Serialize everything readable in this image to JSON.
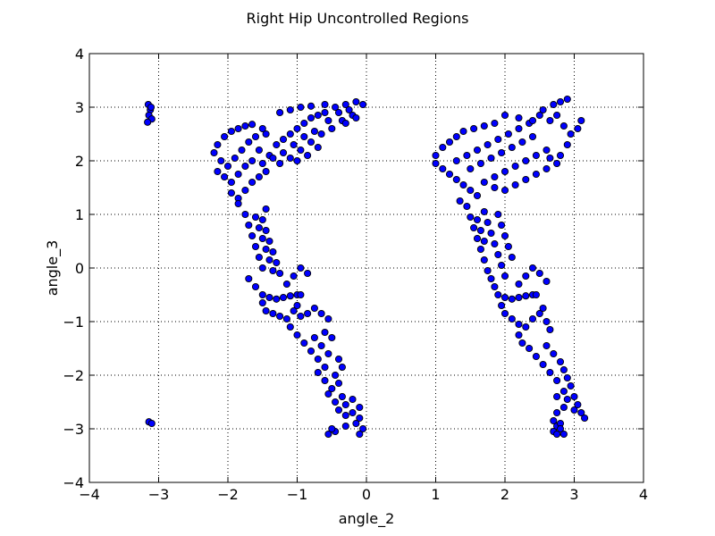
{
  "chart_data": {
    "type": "scatter",
    "title": "Right Hip Uncontrolled Regions",
    "xlabel": "angle_2",
    "ylabel": "angle_3",
    "xlim": [
      -4,
      4
    ],
    "ylim": [
      -4,
      4
    ],
    "xticks": [
      -4,
      -3,
      -2,
      -1,
      0,
      1,
      2,
      3,
      4
    ],
    "yticks": [
      -4,
      -3,
      -2,
      -1,
      0,
      1,
      2,
      3,
      4
    ],
    "xtick_labels": [
      "−4",
      "−3",
      "−2",
      "−1",
      "0",
      "1",
      "2",
      "3",
      "4"
    ],
    "ytick_labels": [
      "−4",
      "−3",
      "−2",
      "−1",
      "0",
      "1",
      "2",
      "3",
      "4"
    ],
    "grid": true,
    "marker_color": "#0000ff",
    "marker_edge_color": "#000000",
    "series": [
      {
        "points": [
          [
            -3.15,
            3.05
          ],
          [
            -3.12,
            2.95
          ],
          [
            -3.14,
            2.85
          ],
          [
            -3.1,
            2.78
          ],
          [
            -3.16,
            2.72
          ],
          [
            -3.11,
            3.0
          ],
          [
            -3.14,
            -2.87
          ],
          [
            -3.1,
            -2.9
          ],
          [
            -2.2,
            2.15
          ],
          [
            -2.15,
            2.3
          ],
          [
            -2.05,
            2.45
          ],
          [
            -1.95,
            2.55
          ],
          [
            -1.85,
            2.6
          ],
          [
            -1.75,
            2.65
          ],
          [
            -1.65,
            2.68
          ],
          [
            -2.1,
            2.0
          ],
          [
            -2.0,
            1.9
          ],
          [
            -1.9,
            2.05
          ],
          [
            -1.8,
            2.2
          ],
          [
            -1.7,
            2.35
          ],
          [
            -1.6,
            2.45
          ],
          [
            -1.55,
            2.2
          ],
          [
            -2.15,
            1.8
          ],
          [
            -2.05,
            1.7
          ],
          [
            -1.95,
            1.6
          ],
          [
            -1.85,
            1.75
          ],
          [
            -1.75,
            1.9
          ],
          [
            -1.65,
            2.0
          ],
          [
            -1.5,
            1.95
          ],
          [
            -1.95,
            1.4
          ],
          [
            -1.85,
            1.3
          ],
          [
            -1.75,
            1.45
          ],
          [
            -1.65,
            1.6
          ],
          [
            -1.55,
            1.7
          ],
          [
            -1.45,
            1.8
          ],
          [
            -1.4,
            2.1
          ],
          [
            -1.3,
            2.3
          ],
          [
            -1.2,
            2.4
          ],
          [
            -1.1,
            2.5
          ],
          [
            -1.0,
            2.6
          ],
          [
            -0.9,
            2.7
          ],
          [
            -0.8,
            2.8
          ],
          [
            -0.7,
            2.85
          ],
          [
            -0.6,
            2.9
          ],
          [
            -1.25,
            2.9
          ],
          [
            -1.1,
            2.95
          ],
          [
            -0.95,
            3.0
          ],
          [
            -0.8,
            3.02
          ],
          [
            -0.6,
            3.05
          ],
          [
            -0.45,
            3.0
          ],
          [
            -0.3,
            3.05
          ],
          [
            -0.15,
            3.1
          ],
          [
            -0.05,
            3.05
          ],
          [
            -0.2,
            2.85
          ],
          [
            -0.35,
            2.75
          ],
          [
            -0.5,
            2.6
          ],
          [
            -0.65,
            2.5
          ],
          [
            -0.8,
            2.35
          ],
          [
            -0.95,
            2.2
          ],
          [
            -1.1,
            2.05
          ],
          [
            -1.25,
            1.95
          ],
          [
            -1.35,
            2.05
          ],
          [
            -1.45,
            2.5
          ],
          [
            -1.5,
            2.6
          ],
          [
            -1.2,
            2.15
          ],
          [
            -1.05,
            2.3
          ],
          [
            -0.9,
            2.45
          ],
          [
            -0.75,
            2.55
          ],
          [
            -0.55,
            2.75
          ],
          [
            -0.4,
            2.9
          ],
          [
            -0.25,
            2.95
          ],
          [
            -1.0,
            2.0
          ],
          [
            -0.85,
            2.1
          ],
          [
            -0.7,
            2.25
          ],
          [
            -0.3,
            2.7
          ],
          [
            -0.15,
            2.8
          ],
          [
            -1.85,
            1.2
          ],
          [
            -1.75,
            1.0
          ],
          [
            -1.7,
            0.8
          ],
          [
            -1.65,
            0.6
          ],
          [
            -1.6,
            0.4
          ],
          [
            -1.55,
            0.2
          ],
          [
            -1.5,
            0.0
          ],
          [
            -1.45,
            1.1
          ],
          [
            -1.5,
            0.9
          ],
          [
            -1.45,
            0.7
          ],
          [
            -1.4,
            0.5
          ],
          [
            -1.35,
            0.3
          ],
          [
            -1.3,
            0.1
          ],
          [
            -1.25,
            -0.1
          ],
          [
            -1.6,
            0.95
          ],
          [
            -1.55,
            0.75
          ],
          [
            -1.5,
            0.55
          ],
          [
            -1.45,
            0.35
          ],
          [
            -1.4,
            0.15
          ],
          [
            -1.35,
            -0.05
          ],
          [
            -1.7,
            -0.2
          ],
          [
            -1.6,
            -0.35
          ],
          [
            -1.5,
            -0.5
          ],
          [
            -1.4,
            -0.55
          ],
          [
            -1.3,
            -0.58
          ],
          [
            -1.2,
            -0.55
          ],
          [
            -1.1,
            -0.52
          ],
          [
            -1.0,
            -0.5
          ],
          [
            -0.95,
            -0.5
          ],
          [
            -1.15,
            -0.3
          ],
          [
            -1.05,
            -0.15
          ],
          [
            -0.95,
            0.0
          ],
          [
            -0.85,
            -0.1
          ],
          [
            -1.5,
            -0.65
          ],
          [
            -1.45,
            -0.8
          ],
          [
            -1.35,
            -0.85
          ],
          [
            -1.25,
            -0.9
          ],
          [
            -1.15,
            -0.95
          ],
          [
            -1.05,
            -0.8
          ],
          [
            -1.0,
            -0.7
          ],
          [
            -0.95,
            -0.9
          ],
          [
            -0.85,
            -0.85
          ],
          [
            -0.75,
            -0.75
          ],
          [
            -0.65,
            -0.85
          ],
          [
            -0.55,
            -0.95
          ],
          [
            -1.1,
            -1.1
          ],
          [
            -1.0,
            -1.25
          ],
          [
            -0.9,
            -1.4
          ],
          [
            -0.8,
            -1.55
          ],
          [
            -0.7,
            -1.7
          ],
          [
            -0.75,
            -1.3
          ],
          [
            -0.65,
            -1.45
          ],
          [
            -0.6,
            -1.2
          ],
          [
            -0.5,
            -1.3
          ],
          [
            -0.55,
            -1.6
          ],
          [
            -0.6,
            -1.85
          ],
          [
            -0.7,
            -1.95
          ],
          [
            -0.6,
            -2.1
          ],
          [
            -0.5,
            -2.25
          ],
          [
            -0.45,
            -2.0
          ],
          [
            -0.4,
            -2.15
          ],
          [
            -0.55,
            -2.35
          ],
          [
            -0.45,
            -2.5
          ],
          [
            -0.35,
            -2.4
          ],
          [
            -0.3,
            -2.55
          ],
          [
            -0.4,
            -2.65
          ],
          [
            -0.3,
            -2.75
          ],
          [
            -0.2,
            -2.7
          ],
          [
            -0.1,
            -2.8
          ],
          [
            -0.1,
            -2.6
          ],
          [
            -0.2,
            -2.45
          ],
          [
            -0.15,
            -2.9
          ],
          [
            -0.05,
            -3.0
          ],
          [
            -0.1,
            -3.1
          ],
          [
            -0.45,
            -3.05
          ],
          [
            -0.55,
            -3.1
          ],
          [
            -0.5,
            -3.0
          ],
          [
            -0.3,
            -2.95
          ],
          [
            -0.35,
            -1.85
          ],
          [
            -0.4,
            -1.7
          ],
          [
            1.0,
            2.1
          ],
          [
            1.1,
            2.25
          ],
          [
            1.2,
            2.35
          ],
          [
            1.3,
            2.45
          ],
          [
            1.4,
            2.55
          ],
          [
            1.55,
            2.6
          ],
          [
            1.7,
            2.65
          ],
          [
            1.85,
            2.7
          ],
          [
            1.0,
            1.95
          ],
          [
            1.1,
            1.85
          ],
          [
            1.2,
            1.75
          ],
          [
            1.3,
            1.65
          ],
          [
            1.4,
            1.55
          ],
          [
            1.5,
            1.45
          ],
          [
            1.6,
            1.35
          ],
          [
            1.3,
            2.0
          ],
          [
            1.45,
            2.1
          ],
          [
            1.6,
            2.2
          ],
          [
            1.75,
            2.3
          ],
          [
            1.9,
            2.4
          ],
          [
            2.05,
            2.5
          ],
          [
            2.2,
            2.6
          ],
          [
            2.35,
            2.7
          ],
          [
            1.5,
            1.85
          ],
          [
            1.65,
            1.95
          ],
          [
            1.8,
            2.05
          ],
          [
            1.95,
            2.15
          ],
          [
            2.1,
            2.25
          ],
          [
            2.25,
            2.35
          ],
          [
            2.4,
            2.45
          ],
          [
            1.7,
            1.6
          ],
          [
            1.85,
            1.7
          ],
          [
            2.0,
            1.8
          ],
          [
            2.15,
            1.9
          ],
          [
            2.3,
            2.0
          ],
          [
            2.45,
            2.1
          ],
          [
            2.6,
            2.2
          ],
          [
            2.0,
            2.85
          ],
          [
            2.2,
            2.8
          ],
          [
            2.4,
            2.75
          ],
          [
            2.55,
            2.95
          ],
          [
            2.7,
            3.05
          ],
          [
            2.8,
            3.1
          ],
          [
            2.9,
            3.15
          ],
          [
            2.75,
            2.85
          ],
          [
            2.85,
            2.65
          ],
          [
            2.95,
            2.5
          ],
          [
            3.05,
            2.6
          ],
          [
            3.1,
            2.75
          ],
          [
            2.9,
            2.3
          ],
          [
            2.8,
            2.1
          ],
          [
            2.65,
            2.05
          ],
          [
            2.75,
            1.95
          ],
          [
            2.6,
            1.85
          ],
          [
            2.45,
            1.75
          ],
          [
            2.3,
            1.65
          ],
          [
            2.15,
            1.55
          ],
          [
            2.0,
            1.45
          ],
          [
            1.85,
            1.5
          ],
          [
            2.5,
            2.85
          ],
          [
            2.65,
            2.75
          ],
          [
            1.35,
            1.25
          ],
          [
            1.45,
            1.15
          ],
          [
            1.5,
            0.95
          ],
          [
            1.55,
            0.75
          ],
          [
            1.6,
            0.55
          ],
          [
            1.65,
            0.35
          ],
          [
            1.7,
            0.15
          ],
          [
            1.75,
            -0.05
          ],
          [
            1.7,
            1.05
          ],
          [
            1.75,
            0.85
          ],
          [
            1.8,
            0.65
          ],
          [
            1.85,
            0.45
          ],
          [
            1.9,
            0.25
          ],
          [
            1.95,
            0.05
          ],
          [
            2.0,
            -0.15
          ],
          [
            1.6,
            0.9
          ],
          [
            1.65,
            0.7
          ],
          [
            1.7,
            0.5
          ],
          [
            1.9,
            1.0
          ],
          [
            1.95,
            0.8
          ],
          [
            2.0,
            0.6
          ],
          [
            2.05,
            0.4
          ],
          [
            2.1,
            0.2
          ],
          [
            1.8,
            -0.2
          ],
          [
            1.85,
            -0.35
          ],
          [
            1.9,
            -0.5
          ],
          [
            2.0,
            -0.55
          ],
          [
            2.1,
            -0.58
          ],
          [
            2.2,
            -0.55
          ],
          [
            2.3,
            -0.52
          ],
          [
            2.4,
            -0.5
          ],
          [
            2.45,
            -0.5
          ],
          [
            2.2,
            -0.3
          ],
          [
            2.3,
            -0.15
          ],
          [
            2.4,
            0.0
          ],
          [
            2.5,
            -0.1
          ],
          [
            2.6,
            -0.25
          ],
          [
            1.95,
            -0.7
          ],
          [
            2.0,
            -0.85
          ],
          [
            2.1,
            -0.95
          ],
          [
            2.2,
            -1.05
          ],
          [
            2.3,
            -1.1
          ],
          [
            2.4,
            -0.95
          ],
          [
            2.5,
            -0.85
          ],
          [
            2.55,
            -0.75
          ],
          [
            2.6,
            -1.0
          ],
          [
            2.65,
            -1.15
          ],
          [
            2.2,
            -1.25
          ],
          [
            2.25,
            -1.4
          ],
          [
            2.35,
            -1.5
          ],
          [
            2.45,
            -1.65
          ],
          [
            2.55,
            -1.8
          ],
          [
            2.65,
            -1.95
          ],
          [
            2.75,
            -2.1
          ],
          [
            2.6,
            -1.45
          ],
          [
            2.7,
            -1.6
          ],
          [
            2.8,
            -1.75
          ],
          [
            2.85,
            -1.9
          ],
          [
            2.9,
            -2.05
          ],
          [
            2.95,
            -2.2
          ],
          [
            2.85,
            -2.3
          ],
          [
            2.75,
            -2.4
          ],
          [
            2.9,
            -2.45
          ],
          [
            3.0,
            -2.4
          ],
          [
            3.05,
            -2.55
          ],
          [
            3.1,
            -2.7
          ],
          [
            3.15,
            -2.8
          ],
          [
            3.0,
            -2.65
          ],
          [
            2.85,
            -2.6
          ],
          [
            2.75,
            -2.7
          ],
          [
            2.7,
            -2.85
          ],
          [
            2.75,
            -2.95
          ],
          [
            2.7,
            -3.05
          ],
          [
            2.75,
            -3.1
          ],
          [
            2.85,
            -3.1
          ],
          [
            2.8,
            -2.9
          ],
          [
            2.8,
            -3.0
          ]
        ]
      }
    ]
  }
}
